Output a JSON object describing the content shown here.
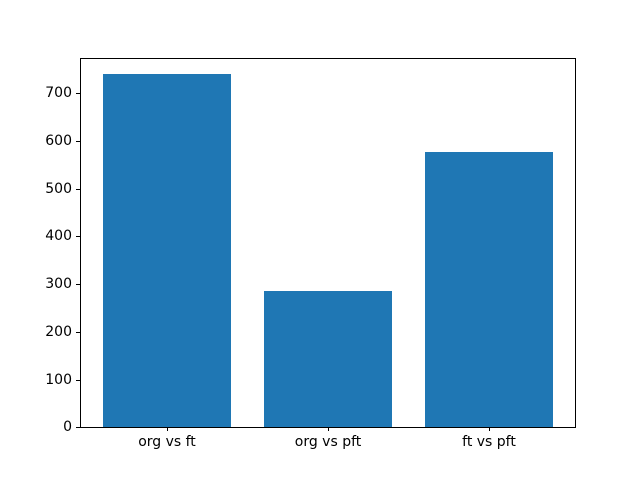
{
  "chart_data": {
    "type": "bar",
    "title": "",
    "xlabel": "",
    "ylabel": "",
    "categories": [
      "org vs ft",
      "org vs pft",
      "ft vs pft"
    ],
    "values": [
      740,
      285,
      578
    ],
    "x_positions": [
      0,
      1,
      2
    ],
    "bar_width": 0.8,
    "bar_color": "#1f77b4",
    "background_color": "#ffffff",
    "axes_edge_color": "#000000",
    "tick_label_color": "#000000",
    "xlim": [
      -0.54,
      2.54
    ],
    "ylim": [
      0,
      775
    ],
    "yticks": [
      0,
      100,
      200,
      300,
      400,
      500,
      600,
      700
    ],
    "grid": false,
    "legend": "none"
  }
}
